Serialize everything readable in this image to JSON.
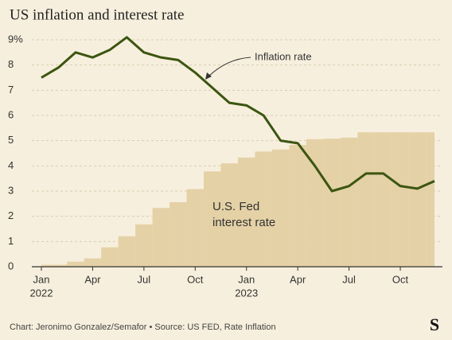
{
  "chart_data": {
    "type": "line_area",
    "title": "US inflation and interest rate",
    "source": "Chart: Jeronimo Gonzalez/Semafor • Source: US FED, Rate Inflation",
    "logo": "S",
    "categories": [
      "Jan",
      null,
      null,
      "Apr",
      null,
      null,
      "Jul",
      null,
      null,
      "Oct",
      null,
      null,
      "Jan",
      null,
      null,
      "Apr",
      null,
      null,
      "Jul",
      null,
      null,
      "Oct",
      null,
      null
    ],
    "years": [
      "2022",
      "2023"
    ],
    "series": [
      {
        "name": "Inflation rate",
        "color": "#3b5510",
        "values": [
          7.5,
          7.9,
          8.5,
          8.3,
          8.6,
          9.1,
          8.5,
          8.3,
          8.2,
          7.7,
          7.1,
          6.5,
          6.4,
          6.0,
          5.0,
          4.9,
          4.0,
          3.0,
          3.2,
          3.7,
          3.7,
          3.2,
          3.1,
          3.4
        ]
      },
      {
        "name": "U.S. Fed interest rate",
        "color": "#e4d1a6",
        "values": [
          0.08,
          0.08,
          0.2,
          0.33,
          0.77,
          1.21,
          1.68,
          2.33,
          2.56,
          3.08,
          3.78,
          4.1,
          4.33,
          4.57,
          4.65,
          4.83,
          5.06,
          5.08,
          5.12,
          5.33,
          5.33,
          5.33,
          5.33,
          5.33
        ]
      }
    ],
    "annotations": [
      "Inflation rate",
      "U.S. Fed",
      "interest rate"
    ],
    "ylim": [
      0,
      9
    ],
    "yticks": [
      0,
      1,
      2,
      3,
      4,
      5,
      6,
      7,
      8,
      {
        "value": 9,
        "label": "9%"
      }
    ],
    "grid": true
  }
}
